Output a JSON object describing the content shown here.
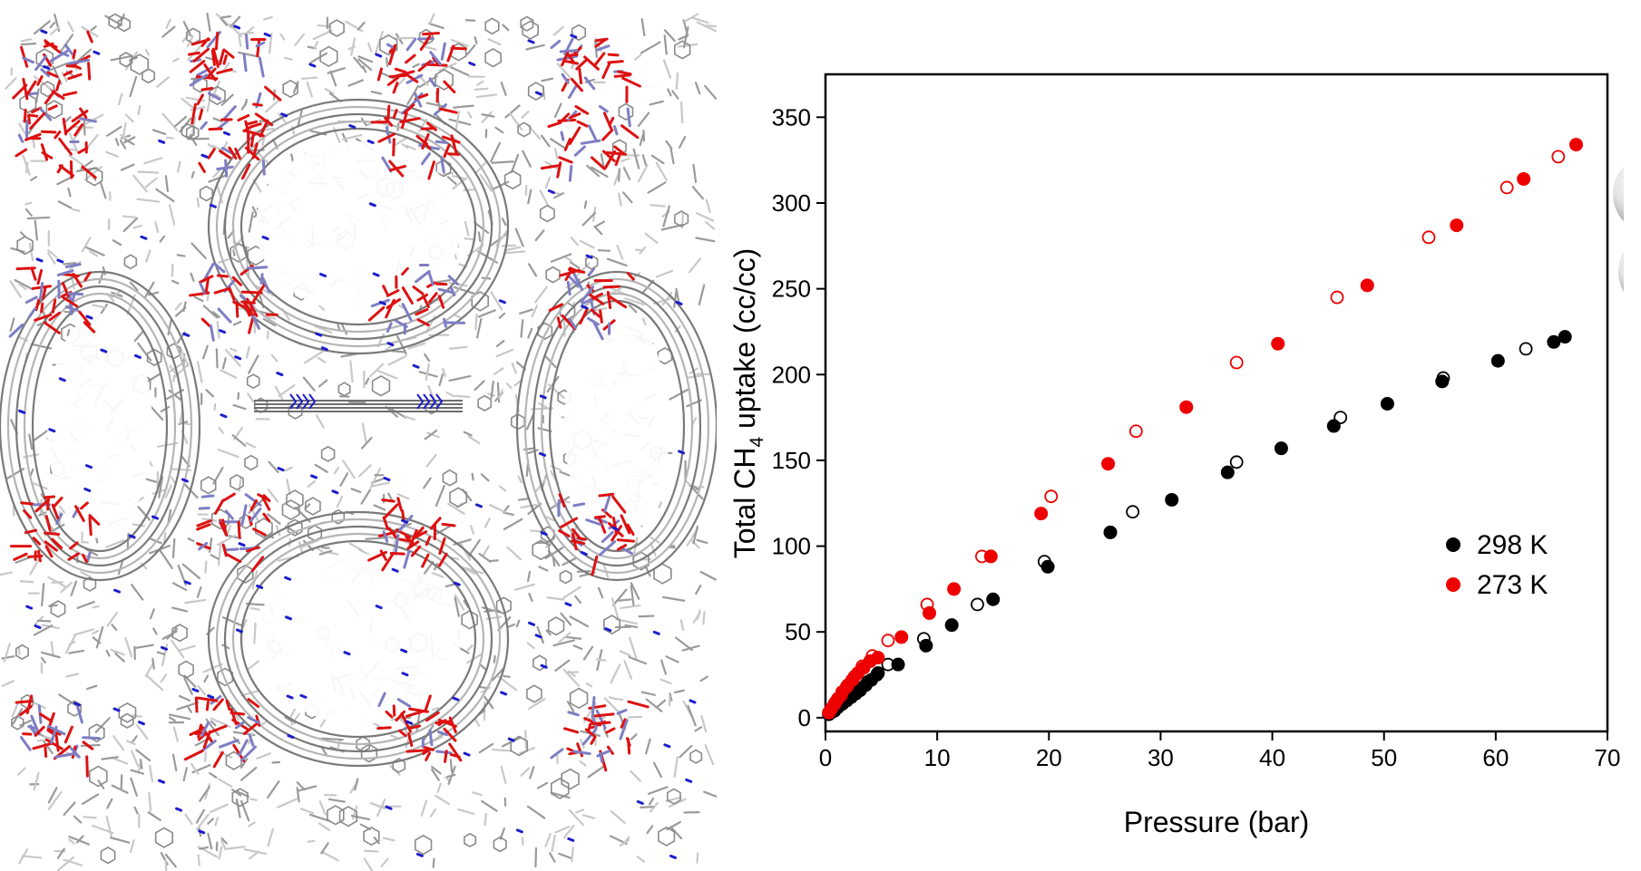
{
  "figure": {
    "left_panel": "crystal-structure-image",
    "icon": "methane-molecule-icon"
  },
  "colors": {
    "black_series": "#000000",
    "red_series": "#ee0000",
    "framework_grey": "#9a9a9a",
    "oxygen_red": "#dd1111",
    "nitrogen_blue": "#1d1dcc",
    "metal_purple": "#7e7ec4",
    "carbon_orange": "#f39b2a",
    "hydrogen_white": "#e8e8e8"
  },
  "chart_data": {
    "type": "scatter",
    "title": "",
    "xlabel": "Pressure (bar)",
    "ylabel": {
      "prefix": "Total CH",
      "subscript": "4",
      "suffix": " uptake (cc/cc)"
    },
    "xlim": [
      0,
      70
    ],
    "ylim": [
      -8,
      375
    ],
    "xticks": [
      0,
      10,
      20,
      30,
      40,
      50,
      60,
      70
    ],
    "yticks": [
      0,
      50,
      100,
      150,
      200,
      250,
      300,
      350
    ],
    "grid": false,
    "legend_position": "bottom-right",
    "series": [
      {
        "name": "298 K",
        "color": "#000000",
        "marker": "filled-circle",
        "points": [
          [
            0.3,
            2
          ],
          [
            0.5,
            3
          ],
          [
            0.8,
            4
          ],
          [
            1.1,
            6
          ],
          [
            1.5,
            8
          ],
          [
            1.9,
            10
          ],
          [
            2.3,
            12
          ],
          [
            2.7,
            14
          ],
          [
            3.1,
            16
          ],
          [
            3.6,
            19
          ],
          [
            4.1,
            22
          ],
          [
            4.7,
            26
          ],
          [
            6.5,
            31
          ],
          [
            9,
            42
          ],
          [
            11.3,
            54
          ],
          [
            15,
            69
          ],
          [
            19.9,
            88
          ],
          [
            25.5,
            108
          ],
          [
            31,
            127
          ],
          [
            36,
            143
          ],
          [
            40.8,
            157
          ],
          [
            45.5,
            170
          ],
          [
            50.3,
            183
          ],
          [
            55.2,
            196
          ],
          [
            60.2,
            208
          ],
          [
            65.2,
            219
          ],
          [
            66.2,
            222
          ]
        ]
      },
      {
        "name": "",
        "color": "#000000",
        "marker": "open-circle",
        "points": [
          [
            0.4,
            3
          ],
          [
            0.8,
            5
          ],
          [
            1.2,
            7
          ],
          [
            1.7,
            10
          ],
          [
            2.3,
            13
          ],
          [
            3,
            17
          ],
          [
            3.8,
            21
          ],
          [
            4.6,
            25
          ],
          [
            5.6,
            31
          ],
          [
            8.8,
            46
          ],
          [
            13.6,
            66
          ],
          [
            19.6,
            91
          ],
          [
            27.5,
            120
          ],
          [
            36.8,
            149
          ],
          [
            46.1,
            175
          ],
          [
            55.3,
            198
          ],
          [
            62.7,
            215
          ]
        ]
      },
      {
        "name": "273 K",
        "color": "#ee0000",
        "marker": "filled-circle",
        "points": [
          [
            0.3,
            3
          ],
          [
            0.5,
            5
          ],
          [
            0.8,
            8
          ],
          [
            1.1,
            11
          ],
          [
            1.5,
            15
          ],
          [
            1.9,
            18
          ],
          [
            2.4,
            22
          ],
          [
            2.9,
            26
          ],
          [
            3.4,
            29
          ],
          [
            4,
            33
          ],
          [
            4.7,
            35
          ],
          [
            6.8,
            47
          ],
          [
            9.3,
            61
          ],
          [
            11.5,
            75
          ],
          [
            14.8,
            94
          ],
          [
            19.3,
            119
          ],
          [
            25.3,
            148
          ],
          [
            32.3,
            181
          ],
          [
            40.5,
            218
          ],
          [
            48.5,
            252
          ],
          [
            56.5,
            287
          ],
          [
            62.5,
            314
          ],
          [
            67.2,
            334
          ]
        ]
      },
      {
        "name": "",
        "color": "#ee0000",
        "marker": "open-circle",
        "points": [
          [
            0.5,
            5
          ],
          [
            0.9,
            9
          ],
          [
            1.4,
            13
          ],
          [
            2,
            19
          ],
          [
            2.6,
            24
          ],
          [
            3.3,
            30
          ],
          [
            4.2,
            36
          ],
          [
            5.6,
            45
          ],
          [
            9.1,
            66
          ],
          [
            14,
            94
          ],
          [
            20.2,
            129
          ],
          [
            27.8,
            167
          ],
          [
            36.8,
            207
          ],
          [
            45.8,
            245
          ],
          [
            54,
            280
          ],
          [
            61,
            309
          ],
          [
            65.6,
            327
          ]
        ]
      }
    ]
  }
}
